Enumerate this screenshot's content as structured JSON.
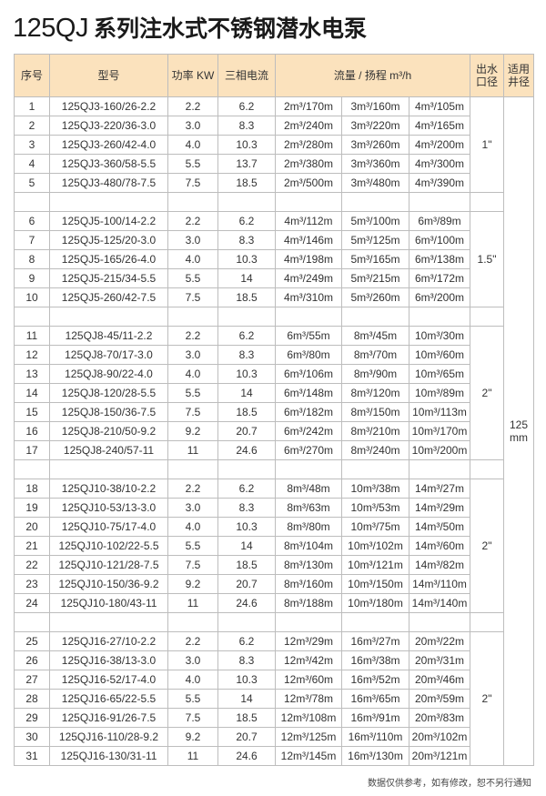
{
  "title": {
    "model_prefix": "125QJ",
    "name": "系列注水式不锈钢潜水电泵"
  },
  "colors": {
    "header_bg": "#fbe2bd",
    "border": "#bdbdbd"
  },
  "headers": {
    "index": "序号",
    "model": "型号",
    "power": "功率 KW",
    "current": "三相电流",
    "flow_head": "流量 / 扬程 m³/h",
    "outlet": "出水口径",
    "well": "适用井径"
  },
  "well_diameter": "125 mm",
  "groups": [
    {
      "outlet": "1\"",
      "rows": [
        [
          "1",
          "125QJ3-160/26-2.2",
          "2.2",
          "6.2",
          "2m³/170m",
          "3m³/160m",
          "4m³/105m"
        ],
        [
          "2",
          "125QJ3-220/36-3.0",
          "3.0",
          "8.3",
          "2m³/240m",
          "3m³/220m",
          "4m³/165m"
        ],
        [
          "3",
          "125QJ3-260/42-4.0",
          "4.0",
          "10.3",
          "2m³/280m",
          "3m³/260m",
          "4m³/200m"
        ],
        [
          "4",
          "125QJ3-360/58-5.5",
          "5.5",
          "13.7",
          "2m³/380m",
          "3m³/360m",
          "4m³/300m"
        ],
        [
          "5",
          "125QJ3-480/78-7.5",
          "7.5",
          "18.5",
          "2m³/500m",
          "3m³/480m",
          "4m³/390m"
        ]
      ]
    },
    {
      "outlet": "1.5\"",
      "rows": [
        [
          "6",
          "125QJ5-100/14-2.2",
          "2.2",
          "6.2",
          "4m³/112m",
          "5m³/100m",
          "6m³/89m"
        ],
        [
          "7",
          "125QJ5-125/20-3.0",
          "3.0",
          "8.3",
          "4m³/146m",
          "5m³/125m",
          "6m³/100m"
        ],
        [
          "8",
          "125QJ5-165/26-4.0",
          "4.0",
          "10.3",
          "4m³/198m",
          "5m³/165m",
          "6m³/138m"
        ],
        [
          "9",
          "125QJ5-215/34-5.5",
          "5.5",
          "14",
          "4m³/249m",
          "5m³/215m",
          "6m³/172m"
        ],
        [
          "10",
          "125QJ5-260/42-7.5",
          "7.5",
          "18.5",
          "4m³/310m",
          "5m³/260m",
          "6m³/200m"
        ]
      ]
    },
    {
      "outlet": "2\"",
      "rows": [
        [
          "11",
          "125QJ8-45/11-2.2",
          "2.2",
          "6.2",
          "6m³/55m",
          "8m³/45m",
          "10m³/30m"
        ],
        [
          "12",
          "125QJ8-70/17-3.0",
          "3.0",
          "8.3",
          "6m³/80m",
          "8m³/70m",
          "10m³/60m"
        ],
        [
          "13",
          "125QJ8-90/22-4.0",
          "4.0",
          "10.3",
          "6m³/106m",
          "8m³/90m",
          "10m³/65m"
        ],
        [
          "14",
          "125QJ8-120/28-5.5",
          "5.5",
          "14",
          "6m³/148m",
          "8m³/120m",
          "10m³/89m"
        ],
        [
          "15",
          "125QJ8-150/36-7.5",
          "7.5",
          "18.5",
          "6m³/182m",
          "8m³/150m",
          "10m³/113m"
        ],
        [
          "16",
          "125QJ8-210/50-9.2",
          "9.2",
          "20.7",
          "6m³/242m",
          "8m³/210m",
          "10m³/170m"
        ],
        [
          "17",
          "125QJ8-240/57-11",
          "11",
          "24.6",
          "6m³/270m",
          "8m³/240m",
          "10m³/200m"
        ]
      ]
    },
    {
      "outlet": "2\"",
      "rows": [
        [
          "18",
          "125QJ10-38/10-2.2",
          "2.2",
          "6.2",
          "8m³/48m",
          "10m³/38m",
          "14m³/27m"
        ],
        [
          "19",
          "125QJ10-53/13-3.0",
          "3.0",
          "8.3",
          "8m³/63m",
          "10m³/53m",
          "14m³/29m"
        ],
        [
          "20",
          "125QJ10-75/17-4.0",
          "4.0",
          "10.3",
          "8m³/80m",
          "10m³/75m",
          "14m³/50m"
        ],
        [
          "21",
          "125QJ10-102/22-5.5",
          "5.5",
          "14",
          "8m³/104m",
          "10m³/102m",
          "14m³/60m"
        ],
        [
          "22",
          "125QJ10-121/28-7.5",
          "7.5",
          "18.5",
          "8m³/130m",
          "10m³/121m",
          "14m³/82m"
        ],
        [
          "23",
          "125QJ10-150/36-9.2",
          "9.2",
          "20.7",
          "8m³/160m",
          "10m³/150m",
          "14m³/110m"
        ],
        [
          "24",
          "125QJ10-180/43-11",
          "11",
          "24.6",
          "8m³/188m",
          "10m³/180m",
          "14m³/140m"
        ]
      ]
    },
    {
      "outlet": "2\"",
      "rows": [
        [
          "25",
          "125QJ16-27/10-2.2",
          "2.2",
          "6.2",
          "12m³/29m",
          "16m³/27m",
          "20m³/22m"
        ],
        [
          "26",
          "125QJ16-38/13-3.0",
          "3.0",
          "8.3",
          "12m³/42m",
          "16m³/38m",
          "20m³/31m"
        ],
        [
          "27",
          "125QJ16-52/17-4.0",
          "4.0",
          "10.3",
          "12m³/60m",
          "16m³/52m",
          "20m³/46m"
        ],
        [
          "28",
          "125QJ16-65/22-5.5",
          "5.5",
          "14",
          "12m³/78m",
          "16m³/65m",
          "20m³/59m"
        ],
        [
          "29",
          "125QJ16-91/26-7.5",
          "7.5",
          "18.5",
          "12m³/108m",
          "16m³/91m",
          "20m³/83m"
        ],
        [
          "30",
          "125QJ16-110/28-9.2",
          "9.2",
          "20.7",
          "12m³/125m",
          "16m³/110m",
          "20m³/102m"
        ],
        [
          "31",
          "125QJ16-130/31-11",
          "11",
          "24.6",
          "12m³/145m",
          "16m³/130m",
          "20m³/121m"
        ]
      ]
    }
  ],
  "footnote": "数据仅供参考，如有修改，恕不另行通知"
}
